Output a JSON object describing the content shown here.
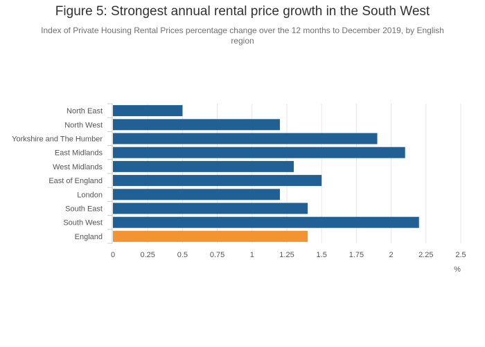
{
  "chart_data": {
    "type": "bar",
    "orientation": "horizontal",
    "title": "Figure 5: Strongest annual rental price growth in the South West",
    "subtitle": "Index of Private Housing Rental Prices percentage change over the 12 months to December 2019, by English region",
    "categories": [
      "North East",
      "North West",
      "Yorkshire and The Humber",
      "East Midlands",
      "West Midlands",
      "East of England",
      "London",
      "South East",
      "South West",
      "England"
    ],
    "values": [
      0.5,
      1.2,
      1.9,
      2.1,
      1.3,
      1.5,
      1.2,
      1.4,
      2.2,
      1.4
    ],
    "xlabel": "%",
    "xlim": [
      0,
      2.5
    ],
    "xticks": [
      "0",
      "0.25",
      "0.5",
      "0.75",
      "1",
      "1.25",
      "1.5",
      "1.75",
      "2",
      "2.25",
      "2.5"
    ],
    "grid": true,
    "colors": {
      "region": "#206095",
      "england": "#f39431",
      "grid": "#e6e6e6",
      "axis": "#cccccc"
    }
  }
}
